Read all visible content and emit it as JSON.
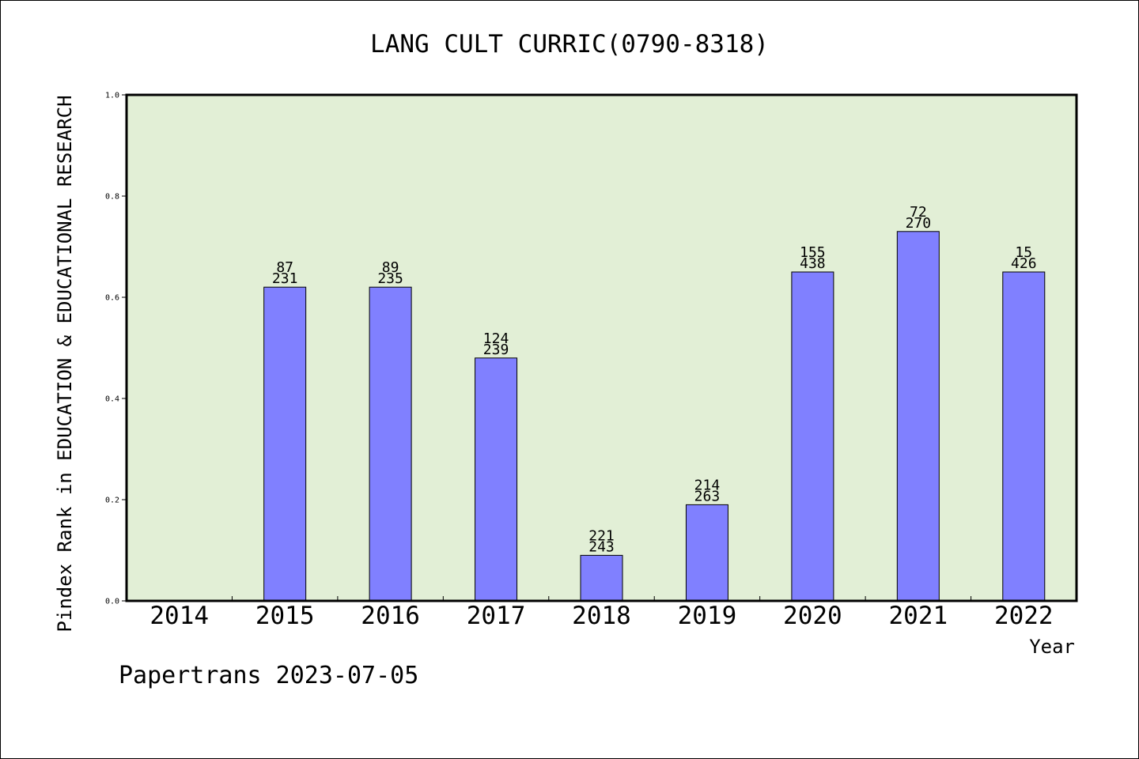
{
  "chart_data": {
    "type": "bar",
    "title": "LANG CULT CURRIC(0790-8318)",
    "xlabel": "Year",
    "ylabel": "Pindex Rank in EDUCATION & EDUCATIONAL RESEARCH",
    "categories": [
      "2014",
      "2015",
      "2016",
      "2017",
      "2018",
      "2019",
      "2020",
      "2021",
      "2022"
    ],
    "values": [
      null,
      0.62,
      0.62,
      0.48,
      0.09,
      0.19,
      0.65,
      0.73,
      0.65
    ],
    "label_top": [
      "",
      "87",
      "89",
      "124",
      "221",
      "214",
      "155",
      "72",
      "15"
    ],
    "label_bottom": [
      "",
      "231",
      "235",
      "239",
      "243",
      "263",
      "438",
      "270",
      "426"
    ],
    "ylim": [
      0,
      1.0
    ],
    "yticks": [
      "0.0",
      "0.2",
      "0.4",
      "0.6",
      "0.8",
      "1.0"
    ],
    "grid": false,
    "colors": {
      "bar": "#8080ff",
      "plot_background": "#e2efd6",
      "axis": "#000000"
    }
  },
  "footer": {
    "credit": "Papertrans 2023-07-05"
  }
}
